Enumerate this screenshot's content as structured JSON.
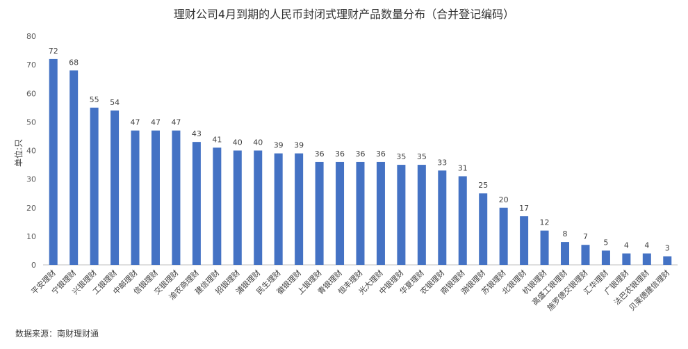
{
  "chart_data": {
    "type": "bar",
    "title": "理财公司4月到期的人民币封闭式理财产品数量分布（合并登记编码）",
    "ylabel": "单位:只",
    "xlabel": "",
    "ylim": [
      0,
      80
    ],
    "yticks": [
      0,
      10,
      20,
      30,
      40,
      50,
      60,
      70,
      80
    ],
    "grid": false,
    "bar_color": "#4472C4",
    "categories": [
      "平安理财",
      "宁银理财",
      "兴银理财",
      "工银理财",
      "中邮理财",
      "信银理财",
      "交银理财",
      "渝农商理财",
      "建信理财",
      "招银理财",
      "浦银理财",
      "民生理财",
      "徽银理财",
      "上银理财",
      "青银理财",
      "恒丰理财",
      "光大理财",
      "中银理财",
      "华夏理财",
      "农银理财",
      "南银理财",
      "渤银理财",
      "苏银理财",
      "北银理财",
      "杭银理财",
      "高盛工银理财",
      "施罗德交银理财",
      "汇华理财",
      "广银理财",
      "法巴农银理财",
      "贝莱德建信理财"
    ],
    "values": [
      72,
      68,
      55,
      54,
      47,
      47,
      47,
      43,
      41,
      40,
      40,
      39,
      39,
      36,
      36,
      36,
      36,
      35,
      35,
      33,
      31,
      25,
      20,
      17,
      12,
      8,
      7,
      5,
      4,
      4,
      3
    ]
  },
  "source_note": "数据来源：南财理财通"
}
